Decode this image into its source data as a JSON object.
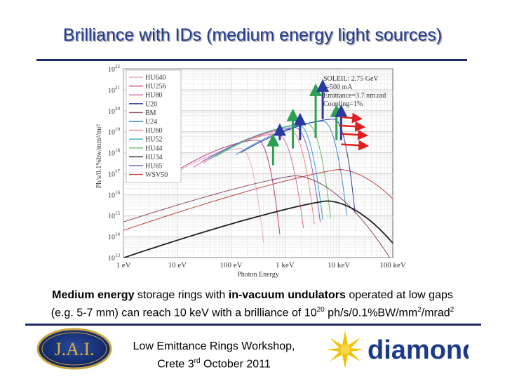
{
  "slide": {
    "title": "Brilliance with IDs (medium energy light sources)",
    "caption": {
      "line1_a": "Medium energy",
      "line1_b": " storage rings with ",
      "line1_c": "in-vacuum undulators",
      "line1_d": " operated at low gaps",
      "line2_a": "(e.g. 5-7 mm) can reach 10 keV with a brilliance of 10",
      "line2_exp": "20",
      "line2_b": " ph/s/0.1%BW/mm",
      "line2_exp2": "2",
      "line2_c": "/mrad",
      "line2_exp3": "2"
    },
    "footer": {
      "line1": "Low Emittance Rings Workshop,",
      "line2_a": "Crete 3",
      "line2_sup": "rd",
      "line2_b": " October 2011"
    },
    "logos": {
      "jai_text": "J.A.I.",
      "diamond_text": "diamond"
    }
  },
  "chart_data": {
    "type": "line",
    "xlabel": "Photon Energy",
    "ylabel": "Ph/s/0.1%bw/mm²/mr²",
    "x_scale": "log",
    "y_scale": "log",
    "xlim_eV": [
      1,
      100000
    ],
    "ylim": [
      10000000000000.0,
      1e+22
    ],
    "x_ticks": [
      {
        "value": 1,
        "label": "1 eV"
      },
      {
        "value": 10,
        "label": "10 eV"
      },
      {
        "value": 100,
        "label": "100 eV"
      },
      {
        "value": 1000,
        "label": "1 keV"
      },
      {
        "value": 10000,
        "label": "10 keV"
      },
      {
        "value": 100000,
        "label": "100 keV"
      }
    ],
    "y_tick_exponents": [
      13,
      14,
      15,
      16,
      17,
      18,
      19,
      20,
      21,
      22
    ],
    "y_tick_base": "10",
    "annotation_lines": [
      "SOLEIL: 2.75 GeV",
      "I=500 mA",
      "Emittance=3.7 nm.rad",
      "Coupling=1%"
    ],
    "legend": [
      {
        "label": "HU640",
        "color": "#e8a8c8"
      },
      {
        "label": "HU256",
        "color": "#c0387a"
      },
      {
        "label": "HU80",
        "color": "#e06aa0"
      },
      {
        "label": "U20",
        "color": "#2b3aa0"
      },
      {
        "label": "BM",
        "color": "#8a4a6a"
      },
      {
        "label": "U24",
        "color": "#3a8ac8"
      },
      {
        "label": "HU60",
        "color": "#f08080"
      },
      {
        "label": "HU52",
        "color": "#2aa8c8"
      },
      {
        "label": "HU44",
        "color": "#60c060"
      },
      {
        "label": "HU34",
        "color": "#202020"
      },
      {
        "label": "HU65",
        "color": "#8060c0"
      },
      {
        "label": "WSV50",
        "color": "#c04040"
      }
    ],
    "series": [
      {
        "name": "HU640",
        "color": "#e8a8c8",
        "emin": 5,
        "peak_e": 150,
        "peak_y": 18.2,
        "emax": 400
      },
      {
        "name": "HU256",
        "color": "#c0387a",
        "emin": 8,
        "peak_e": 300,
        "peak_y": 18.6,
        "emax": 800
      },
      {
        "name": "HU80",
        "color": "#e06aa0",
        "emin": 20,
        "peak_e": 700,
        "peak_y": 18.9,
        "emax": 2200
      },
      {
        "name": "HU60",
        "color": "#f08080",
        "emin": 30,
        "peak_e": 1200,
        "peak_y": 19.1,
        "emax": 3500
      },
      {
        "name": "HU52",
        "color": "#2aa8c8",
        "emin": 40,
        "peak_e": 1800,
        "peak_y": 19.3,
        "emax": 5000
      },
      {
        "name": "HU44",
        "color": "#60c060",
        "emin": 50,
        "peak_e": 2500,
        "peak_y": 19.4,
        "emax": 7000
      },
      {
        "name": "HU65",
        "color": "#8060c0",
        "emin": 30,
        "peak_e": 1500,
        "peak_y": 19.2,
        "emax": 4500
      },
      {
        "name": "U24",
        "color": "#3a8ac8",
        "emin": 120,
        "peak_e": 5000,
        "peak_y": 19.5,
        "emax": 14000
      },
      {
        "name": "U20",
        "color": "#2b3aa0",
        "emin": 150,
        "peak_e": 8000,
        "peak_y": 19.6,
        "emax": 20000
      },
      {
        "name": "BM",
        "color": "#8a4a6a",
        "emin": 1,
        "peak_e": 1500,
        "peak_y": 16.9,
        "emax": 100000
      },
      {
        "name": "HU34",
        "color": "#202020",
        "emin": 1,
        "peak_e": 6000,
        "peak_y": 15.7,
        "emax": 100000
      },
      {
        "name": "WSV50",
        "color": "#c04040",
        "emin": 1,
        "peak_e": 10000,
        "peak_y": 17.2,
        "emax": 100000
      }
    ],
    "arrows": [
      {
        "color": "#2aa050",
        "direction": "up",
        "energy_eV": 600,
        "from": 17.4,
        "to": 18.6
      },
      {
        "color": "#2b3aa0",
        "direction": "up",
        "energy_eV": 800,
        "from": 18.6,
        "to": 19.1
      },
      {
        "color": "#2aa050",
        "direction": "up",
        "energy_eV": 1400,
        "from": 18.2,
        "to": 19.8
      },
      {
        "color": "#2b3aa0",
        "direction": "up",
        "energy_eV": 1900,
        "from": 18.6,
        "to": 19.6
      },
      {
        "color": "#2aa050",
        "direction": "up",
        "energy_eV": 3700,
        "from": 18.7,
        "to": 21.0
      },
      {
        "color": "#2b3aa0",
        "direction": "up",
        "energy_eV": 5000,
        "from": 19.6,
        "to": 21.2
      },
      {
        "color": "#2aa050",
        "direction": "up",
        "energy_eV": 9000,
        "from": 18.6,
        "to": 20.0
      },
      {
        "color": "#2b3aa0",
        "direction": "up",
        "energy_eV": 11000,
        "from": 18.6,
        "to": 20.0
      },
      {
        "color": "#e02020",
        "direction": "right",
        "energy_eV": 11000,
        "to_energy_eV": 22000,
        "level": 19.7
      },
      {
        "color": "#e02020",
        "direction": "right",
        "energy_eV": 10000,
        "to_energy_eV": 25000,
        "level": 19.3
      },
      {
        "color": "#e02020",
        "direction": "right",
        "energy_eV": 11000,
        "to_energy_eV": 28000,
        "level": 18.9
      },
      {
        "color": "#e02020",
        "direction": "right",
        "energy_eV": 11000,
        "to_energy_eV": 29000,
        "level": 18.4
      }
    ]
  }
}
